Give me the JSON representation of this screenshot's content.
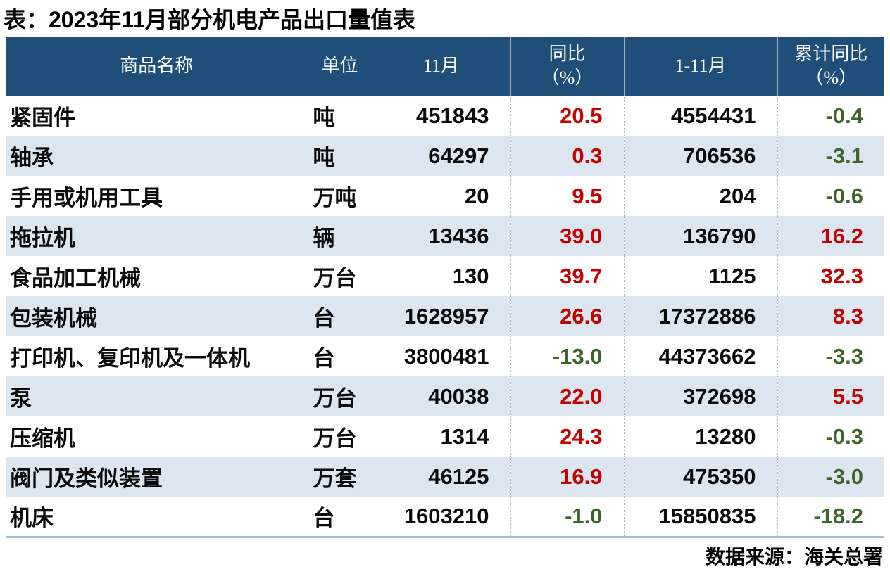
{
  "title": "表：2023年11月部分机电产品出口量值表",
  "source": "数据来源：海关总署",
  "colors": {
    "header_bg": "#1F4E79",
    "header_text": "#FFFFFF",
    "row_alt_bg": "#DCE6F1",
    "positive_pct": "#C40000",
    "negative_pct": "#3E6428",
    "body_text": "#000000",
    "bottom_rule": "#A8BED6"
  },
  "header": {
    "product": "商品名称",
    "unit": "单位",
    "nov": "11月",
    "yoy_line1": "同比",
    "yoy_line2": "（%）",
    "jan_nov": "1-11月",
    "cum_yoy_line1": "累计同比",
    "cum_yoy_line2": "（%）"
  },
  "chart_data": {
    "type": "table",
    "title": "表：2023年11月部分机电产品出口量值表",
    "source": "数据来源：海关总署",
    "columns": [
      "商品名称",
      "单位",
      "11月",
      "同比（%）",
      "1-11月",
      "累计同比（%）"
    ],
    "rows": [
      [
        "紧固件",
        "吨",
        "451843",
        "20.5",
        "4554431",
        "-0.4"
      ],
      [
        "轴承",
        "吨",
        "64297",
        "0.3",
        "706536",
        "-3.1"
      ],
      [
        "手用或机用工具",
        "万吨",
        "20",
        "9.5",
        "204",
        "-0.6"
      ],
      [
        "拖拉机",
        "辆",
        "13436",
        "39.0",
        "136790",
        "16.2"
      ],
      [
        "食品加工机械",
        "万台",
        "130",
        "39.7",
        "1125",
        "32.3"
      ],
      [
        "包装机械",
        "台",
        "1628957",
        "26.6",
        "17372886",
        "8.3"
      ],
      [
        "打印机、复印机及一体机",
        "台",
        "3800481",
        "-13.0",
        "44373662",
        "-3.3"
      ],
      [
        "泵",
        "万台",
        "40038",
        "22.0",
        "372698",
        "5.5"
      ],
      [
        "压缩机",
        "万台",
        "1314",
        "24.3",
        "13280",
        "-0.3"
      ],
      [
        "阀门及类似装置",
        "万套",
        "46125",
        "16.9",
        "475350",
        "-3.0"
      ],
      [
        "机床",
        "台",
        "1603210",
        "-1.0",
        "15850835",
        "-18.2"
      ]
    ]
  }
}
